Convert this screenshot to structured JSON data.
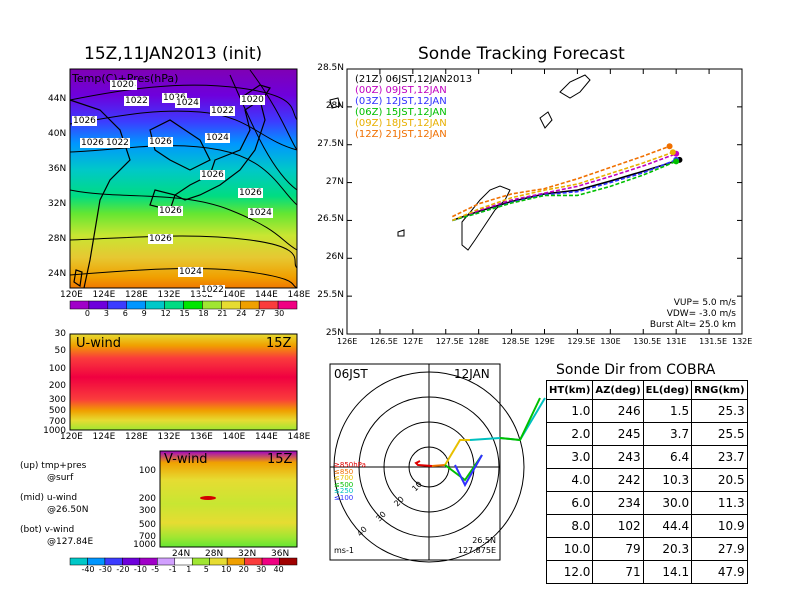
{
  "left_top": {
    "title": "15Z,11JAN2013 (init)",
    "label": "Temp(C)+Pres(hPa)",
    "lat_labels": [
      "44N",
      "40N",
      "36N",
      "32N",
      "28N",
      "24N"
    ],
    "lon_labels": [
      "120E",
      "124E",
      "128E",
      "132E",
      "136E",
      "140E",
      "144E",
      "148E"
    ],
    "isobars": [
      "1024",
      "1022",
      "1026",
      "1024",
      "1020",
      "1022",
      "1026",
      "1026",
      "1022",
      "1026",
      "1024",
      "1026",
      "1026",
      "1026",
      "1024",
      "1026",
      "1024",
      "1022",
      "1020"
    ],
    "colorbar_labels": [
      "0",
      "3",
      "6",
      "9",
      "12",
      "15",
      "18",
      "21",
      "24",
      "27",
      "30"
    ],
    "colorbar_colors": [
      "#a000c8",
      "#6e00dc",
      "#3c3cff",
      "#0096ff",
      "#00c8c8",
      "#00dc82",
      "#00e600",
      "#a0e632",
      "#e6dc32",
      "#f0a000",
      "#fa3c3c",
      "#f00082"
    ]
  },
  "u_wind": {
    "label": "U-wind",
    "time": "15Z",
    "p_labels": [
      "30",
      "50",
      "100",
      "200",
      "300",
      "500",
      "700",
      "1000"
    ],
    "lon_labels": [
      "120E",
      "124E",
      "128E",
      "132E",
      "136E",
      "140E",
      "144E",
      "148E"
    ]
  },
  "v_wind": {
    "label": "V-wind",
    "time": "15Z",
    "p_labels": [
      "100",
      "200",
      "300",
      "500",
      "700",
      "1000"
    ],
    "lat_labels": [
      "24N",
      "28N",
      "32N",
      "36N"
    ],
    "colorbar_labels": [
      "-40",
      "-30",
      "-20",
      "-10",
      "-5",
      "-1",
      "1",
      "5",
      "10",
      "20",
      "30",
      "40"
    ],
    "colorbar_colors": [
      "#00c8c8",
      "#0096ff",
      "#3c3cff",
      "#6e00dc",
      "#a000c8",
      "#d2a0ff",
      "#ffffff",
      "#a0e632",
      "#e6dc32",
      "#f0a000",
      "#fa3c3c",
      "#f00082",
      "#a00000"
    ]
  },
  "legend_text": {
    "up": "(up) tmp+pres",
    "up2": "@surf",
    "mid": "(mid) u-wind",
    "mid2": "@26.50N",
    "bot": "(bot) v-wind",
    "bot2": "@127.84E"
  },
  "tracking": {
    "title": "Sonde Tracking Forecast",
    "lat_labels": [
      "28.5N",
      "28N",
      "27.5N",
      "27N",
      "26.5N",
      "26N",
      "25.5N",
      "25N"
    ],
    "lon_labels": [
      "126E",
      "126.5E",
      "127E",
      "127.5E",
      "128E",
      "128.5E",
      "129E",
      "129.5E",
      "130E",
      "130.5E",
      "131E",
      "131.5E",
      "132E"
    ],
    "info_vup": "VUP= 5.0 m/s",
    "info_vdw": "VDW= -3.0 m/s",
    "info_burst": "Burst Alt= 25.0 km"
  },
  "chart_data": {
    "type": "line",
    "title": "Sonde Tracking Forecast",
    "xlim": [
      126,
      132
    ],
    "ylim": [
      25,
      28.5
    ],
    "series": [
      {
        "name": "(21Z)  06JST,12JAN2013",
        "color": "#000000",
        "x": [
          127.6,
          128.0,
          128.5,
          129.0,
          129.5,
          130.0,
          130.5,
          131.05
        ],
        "y": [
          26.5,
          26.62,
          26.75,
          26.85,
          26.9,
          27.02,
          27.15,
          27.3
        ]
      },
      {
        "name": "(00Z)  09JST,12JAN",
        "color": "#c000c0",
        "x": [
          127.6,
          128.0,
          128.5,
          129.0,
          129.5,
          130.0,
          130.5,
          131.0
        ],
        "y": [
          26.5,
          26.63,
          26.77,
          26.86,
          26.95,
          27.08,
          27.22,
          27.38
        ]
      },
      {
        "name": "(03Z)  12JST,12JAN",
        "color": "#3030ff",
        "x": [
          127.6,
          128.0,
          128.5,
          129.0,
          129.5,
          130.0,
          130.5,
          131.0
        ],
        "y": [
          26.5,
          26.6,
          26.74,
          26.84,
          26.88,
          27.0,
          27.13,
          27.3
        ]
      },
      {
        "name": "(06Z)  15JST,12JAN",
        "color": "#00c000",
        "x": [
          127.6,
          128.0,
          128.5,
          129.0,
          129.5,
          130.0,
          130.5,
          131.0
        ],
        "y": [
          26.5,
          26.6,
          26.73,
          26.83,
          26.83,
          26.95,
          27.1,
          27.28
        ]
      },
      {
        "name": "(09Z)  18JST,12JAN",
        "color": "#e8b000",
        "x": [
          127.6,
          128.0,
          128.5,
          129.0,
          129.5,
          130.0,
          130.5,
          130.95
        ],
        "y": [
          26.5,
          26.65,
          26.8,
          26.9,
          26.98,
          27.12,
          27.26,
          27.4
        ]
      },
      {
        "name": "(12Z)  21JST,12JAN",
        "color": "#f07000",
        "x": [
          127.6,
          128.0,
          128.5,
          129.0,
          129.5,
          130.0,
          130.5,
          130.9
        ],
        "y": [
          26.55,
          26.72,
          26.85,
          26.92,
          27.05,
          27.2,
          27.35,
          27.48
        ]
      }
    ]
  },
  "polar": {
    "label_left": "06JST",
    "label_right": "12JAN",
    "ring_labels": [
      "10",
      "20",
      "30",
      "40"
    ],
    "legend": [
      {
        "text": "≥850hPa",
        "color": "#e00000"
      },
      {
        "text": "≤850",
        "color": "#f07000"
      },
      {
        "text": "≤700",
        "color": "#e8c000"
      },
      {
        "text": "≤500",
        "color": "#00c000"
      },
      {
        "text": "≤250",
        "color": "#00c0c0"
      },
      {
        "text": "≤100",
        "color": "#3030ff"
      }
    ],
    "unit": "ms-1",
    "pos_lat": "26.5N",
    "pos_lon": "127.875E"
  },
  "sonde_table": {
    "title": "Sonde Dir from COBRA",
    "headers": [
      "HT(km)",
      "AZ(deg)",
      "EL(deg)",
      "RNG(km)"
    ],
    "rows": [
      [
        "1.0",
        "246",
        "1.5",
        "25.3"
      ],
      [
        "2.0",
        "245",
        "3.7",
        "25.5"
      ],
      [
        "3.0",
        "243",
        "6.4",
        "23.7"
      ],
      [
        "4.0",
        "242",
        "10.3",
        "20.5"
      ],
      [
        "6.0",
        "234",
        "30.0",
        "11.3"
      ],
      [
        "8.0",
        "102",
        "44.4",
        "10.9"
      ],
      [
        "10.0",
        "79",
        "20.3",
        "27.9"
      ],
      [
        "12.0",
        "71",
        "14.1",
        "47.9"
      ]
    ]
  }
}
